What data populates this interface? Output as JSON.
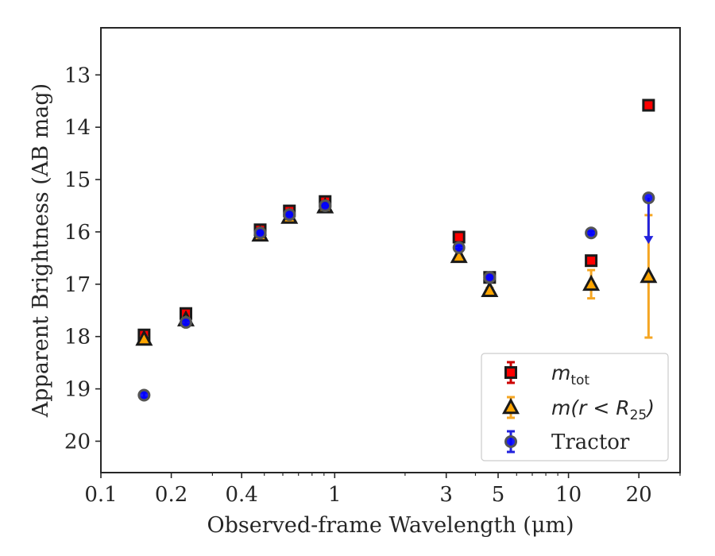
{
  "chart_data": {
    "type": "scatter",
    "xlabel": "Observed-frame Wavelength (μm)",
    "ylabel": "Apparent Brightness (AB mag)",
    "xscale": "log",
    "xlim": [
      0.1,
      30
    ],
    "ylim": [
      20.6,
      12.1
    ],
    "y_inverted": true,
    "x_ticks": [
      0.1,
      0.2,
      0.4,
      1,
      3,
      5,
      10,
      20
    ],
    "x_tick_labels": [
      "0.1",
      "0.2",
      "0.4",
      "1",
      "3",
      "5",
      "10",
      "20"
    ],
    "y_ticks": [
      13,
      14,
      15,
      16,
      17,
      18,
      19,
      20
    ],
    "y_tick_labels": [
      "13",
      "14",
      "15",
      "16",
      "17",
      "18",
      "19",
      "20"
    ],
    "grid": false,
    "legend_position": "lower right",
    "series": [
      {
        "name": "m_tot",
        "legend_base": "m",
        "legend_sub": "tot",
        "marker": "square",
        "fill_color": "#ff0000",
        "edge_color": "#1a1a1a",
        "err_color": "#cc0000",
        "points": [
          {
            "x": 0.153,
            "y": 17.97,
            "err": 0.05
          },
          {
            "x": 0.231,
            "y": 17.56,
            "err": 0.04
          },
          {
            "x": 0.48,
            "y": 15.96,
            "err": 0.03
          },
          {
            "x": 0.64,
            "y": 15.6,
            "err": 0.03
          },
          {
            "x": 0.91,
            "y": 15.42,
            "err": 0.03
          },
          {
            "x": 3.4,
            "y": 16.1,
            "err": 0.03
          },
          {
            "x": 4.6,
            "y": 16.87,
            "err": 0.03
          },
          {
            "x": 12.5,
            "y": 16.55,
            "err": 0.04
          },
          {
            "x": 22.0,
            "y": 13.58,
            "err": 0.03
          }
        ]
      },
      {
        "name": "m(r < R25)",
        "legend_base": "m(r < R",
        "legend_sub": "25",
        "legend_tail": ")",
        "marker": "triangle",
        "fill_color": "#ffa500",
        "edge_color": "#1a1a1a",
        "err_color": "#f5a623",
        "points": [
          {
            "x": 0.153,
            "y": 18.05,
            "err": 0.04
          },
          {
            "x": 0.231,
            "y": 17.68,
            "err": 0.04
          },
          {
            "x": 0.48,
            "y": 16.06,
            "err": 0.03
          },
          {
            "x": 0.64,
            "y": 15.72,
            "err": 0.03
          },
          {
            "x": 0.91,
            "y": 15.52,
            "err": 0.03
          },
          {
            "x": 3.4,
            "y": 16.47,
            "err": 0.04
          },
          {
            "x": 4.6,
            "y": 17.12,
            "err": 0.05
          },
          {
            "x": 12.5,
            "y": 17.0,
            "err": 0.27
          },
          {
            "x": 22.0,
            "y": 16.85,
            "err": 1.17
          }
        ]
      },
      {
        "name": "Tractor",
        "legend_base": "Tractor",
        "marker": "circle",
        "fill_color": "#0000ff",
        "edge_color": "#555555",
        "err_color": "#2222dd",
        "points": [
          {
            "x": 0.153,
            "y": 19.12,
            "err": 0.05
          },
          {
            "x": 0.231,
            "y": 17.73,
            "err": 0.04
          },
          {
            "x": 0.48,
            "y": 16.02,
            "err": 0.03
          },
          {
            "x": 0.64,
            "y": 15.67,
            "err": 0.03
          },
          {
            "x": 0.91,
            "y": 15.5,
            "err": 0.03
          },
          {
            "x": 3.4,
            "y": 16.3,
            "err": 0.03
          },
          {
            "x": 4.6,
            "y": 16.87,
            "err": 0.03
          },
          {
            "x": 12.5,
            "y": 16.02,
            "err": 0.03
          },
          {
            "x": 22.0,
            "y": 15.35,
            "err": 0.03,
            "upper_limit_to": 16.2
          }
        ]
      }
    ]
  }
}
